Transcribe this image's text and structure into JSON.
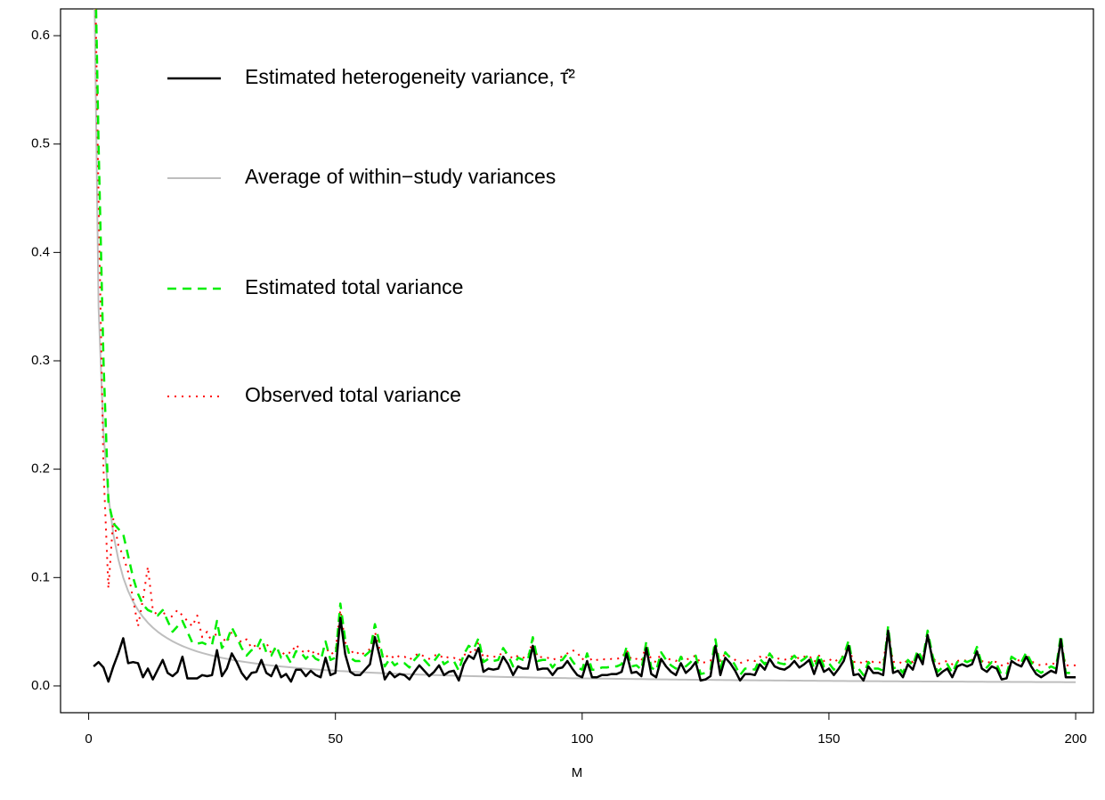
{
  "chart_data": {
    "type": "line",
    "xlabel": "M",
    "xlim": [
      -5.7,
      203.6
    ],
    "ylim": [
      -0.0247,
      0.6247
    ],
    "xticks": [
      0,
      50,
      100,
      150,
      200
    ],
    "yticks": [
      {
        "value": 0,
        "label": "0.0"
      },
      0.1,
      0.2,
      0.3,
      0.4,
      0.5,
      0.6
    ],
    "x": [
      1,
      2,
      3,
      4,
      5,
      6,
      7,
      8,
      9,
      10,
      11,
      12,
      13,
      14,
      15,
      16,
      17,
      18,
      19,
      20,
      21,
      22,
      23,
      24,
      25,
      26,
      27,
      28,
      29,
      30,
      31,
      32,
      33,
      34,
      35,
      36,
      37,
      38,
      39,
      40,
      41,
      42,
      43,
      44,
      45,
      46,
      47,
      48,
      49,
      50,
      51,
      52,
      53,
      54,
      55,
      56,
      57,
      58,
      59,
      60,
      61,
      62,
      63,
      64,
      65,
      66,
      67,
      68,
      69,
      70,
      71,
      72,
      73,
      74,
      75,
      76,
      77,
      78,
      79,
      80,
      81,
      82,
      83,
      84,
      85,
      86,
      87,
      88,
      89,
      90,
      91,
      92,
      93,
      94,
      95,
      96,
      97,
      98,
      99,
      100,
      101,
      102,
      103,
      104,
      105,
      106,
      107,
      108,
      109,
      110,
      111,
      112,
      113,
      114,
      115,
      116,
      117,
      118,
      119,
      120,
      121,
      122,
      123,
      124,
      125,
      126,
      127,
      128,
      129,
      130,
      131,
      132,
      133,
      134,
      135,
      136,
      137,
      138,
      139,
      140,
      141,
      142,
      143,
      144,
      145,
      146,
      147,
      148,
      149,
      150,
      151,
      152,
      153,
      154,
      155,
      156,
      157,
      158,
      159,
      160,
      161,
      162,
      163,
      164,
      165,
      166,
      167,
      168,
      169,
      170,
      171,
      172,
      173,
      174,
      175,
      176,
      177,
      178,
      179,
      180,
      181,
      182,
      183,
      184,
      185,
      186,
      187,
      188,
      189,
      190,
      191,
      192,
      193,
      194,
      195,
      196,
      197,
      198,
      199,
      200
    ],
    "series": [
      {
        "name": "Estimated heterogeneity variance, τ̂²",
        "color": "#000000",
        "linestyle": "solid",
        "values": [
          0.018,
          0.022,
          0.017,
          0.004,
          0.018,
          0.03,
          0.044,
          0.021,
          0.022,
          0.021,
          0.008,
          0.016,
          0.006,
          0.015,
          0.024,
          0.012,
          0.009,
          0.013,
          0.027,
          0.007,
          0.007,
          0.007,
          0.01,
          0.009,
          0.01,
          0.033,
          0.009,
          0.016,
          0.03,
          0.022,
          0.012,
          0.006,
          0.012,
          0.013,
          0.024,
          0.012,
          0.009,
          0.019,
          0.008,
          0.011,
          0.004,
          0.015,
          0.015,
          0.009,
          0.014,
          0.01,
          0.008,
          0.026,
          0.01,
          0.012,
          0.063,
          0.029,
          0.013,
          0.01,
          0.01,
          0.015,
          0.02,
          0.045,
          0.027,
          0.006,
          0.013,
          0.008,
          0.011,
          0.01,
          0.006,
          0.013,
          0.019,
          0.014,
          0.009,
          0.013,
          0.019,
          0.01,
          0.013,
          0.014,
          0.005,
          0.02,
          0.028,
          0.025,
          0.035,
          0.013,
          0.016,
          0.015,
          0.016,
          0.027,
          0.02,
          0.01,
          0.018,
          0.016,
          0.016,
          0.037,
          0.015,
          0.016,
          0.016,
          0.01,
          0.016,
          0.017,
          0.023,
          0.016,
          0.01,
          0.008,
          0.023,
          0.008,
          0.008,
          0.01,
          0.01,
          0.011,
          0.011,
          0.013,
          0.03,
          0.012,
          0.013,
          0.009,
          0.035,
          0.011,
          0.008,
          0.025,
          0.018,
          0.013,
          0.01,
          0.021,
          0.012,
          0.016,
          0.022,
          0.005,
          0.006,
          0.009,
          0.037,
          0.01,
          0.026,
          0.021,
          0.014,
          0.005,
          0.011,
          0.011,
          0.01,
          0.02,
          0.015,
          0.025,
          0.018,
          0.016,
          0.015,
          0.018,
          0.023,
          0.017,
          0.02,
          0.024,
          0.011,
          0.024,
          0.013,
          0.016,
          0.01,
          0.016,
          0.023,
          0.037,
          0.01,
          0.011,
          0.005,
          0.018,
          0.012,
          0.012,
          0.01,
          0.051,
          0.012,
          0.014,
          0.008,
          0.02,
          0.015,
          0.029,
          0.02,
          0.047,
          0.024,
          0.009,
          0.013,
          0.016,
          0.008,
          0.018,
          0.02,
          0.018,
          0.02,
          0.032,
          0.016,
          0.013,
          0.018,
          0.016,
          0.006,
          0.007,
          0.023,
          0.02,
          0.018,
          0.027,
          0.018,
          0.011,
          0.008,
          0.011,
          0.014,
          0.012,
          0.043,
          0.008,
          0.008,
          0.008
        ]
      },
      {
        "name": "Average of within−study variances",
        "color": "#bebebe",
        "linestyle": "solid",
        "values": [
          0.7,
          0.35,
          0.233,
          0.175,
          0.14,
          0.117,
          0.1,
          0.0875,
          0.0778,
          0.07,
          0.0636,
          0.0583,
          0.0538,
          0.05,
          0.0467,
          0.0438,
          0.0412,
          0.0389,
          0.0368,
          0.035,
          0.0333,
          0.0318,
          0.0304,
          0.0292,
          0.028,
          0.0269,
          0.0259,
          0.025,
          0.0241,
          0.0233,
          0.0226,
          0.0219,
          0.0212,
          0.0206,
          0.02,
          0.0194,
          0.0189,
          0.0184,
          0.0179,
          0.0175,
          0.0171,
          0.0167,
          0.0163,
          0.0159,
          0.0156,
          0.0152,
          0.0149,
          0.0146,
          0.0143,
          0.014,
          0.0137,
          0.0135,
          0.0132,
          0.013,
          0.0127,
          0.0125,
          0.0123,
          0.0121,
          0.0119,
          0.0117,
          0.0115,
          0.0113,
          0.0111,
          0.0109,
          0.0108,
          0.0106,
          0.0104,
          0.0103,
          0.0101,
          0.01,
          0.0099,
          0.0097,
          0.0096,
          0.0095,
          0.0093,
          0.0092,
          0.0091,
          0.009,
          0.0089,
          0.0088,
          0.0086,
          0.0085,
          0.0084,
          0.0083,
          0.0082,
          0.0081,
          0.008,
          0.008,
          0.0079,
          0.0078,
          0.0077,
          0.0076,
          0.0075,
          0.0074,
          0.0074,
          0.0073,
          0.0072,
          0.0071,
          0.0071,
          0.007,
          0.0069,
          0.0069,
          0.0068,
          0.0067,
          0.0067,
          0.0066,
          0.0065,
          0.0065,
          0.0064,
          0.0064,
          0.0063,
          0.0063,
          0.0062,
          0.0061,
          0.0061,
          0.006,
          0.006,
          0.0059,
          0.0059,
          0.0058,
          0.0058,
          0.0057,
          0.0057,
          0.0056,
          0.0056,
          0.0056,
          0.0055,
          0.0055,
          0.0054,
          0.0054,
          0.0053,
          0.0053,
          0.0053,
          0.0052,
          0.0052,
          0.0051,
          0.0051,
          0.0051,
          0.005,
          0.005,
          0.005,
          0.0049,
          0.0049,
          0.0049,
          0.0048,
          0.0048,
          0.0048,
          0.0047,
          0.0047,
          0.0047,
          0.0046,
          0.0046,
          0.0046,
          0.0045,
          0.0045,
          0.0045,
          0.0045,
          0.0044,
          0.0044,
          0.0044,
          0.0043,
          0.0043,
          0.0043,
          0.0043,
          0.0042,
          0.0042,
          0.0042,
          0.0042,
          0.0041,
          0.0041,
          0.0041,
          0.0041,
          0.004,
          0.004,
          0.004,
          0.004,
          0.004,
          0.0039,
          0.0039,
          0.0039,
          0.0039,
          0.0038,
          0.0038,
          0.0038,
          0.0038,
          0.0038,
          0.0037,
          0.0037,
          0.0037,
          0.0037,
          0.0037,
          0.0036,
          0.0036,
          0.0036,
          0.0036,
          0.0036,
          0.0036,
          0.0035,
          0.0035,
          0.0035
        ]
      },
      {
        "name": "Estimated total variance",
        "color": "#00ee00",
        "linestyle": "dashed",
        "values": [
          0.75,
          0.5,
          0.3,
          0.17,
          0.15,
          0.145,
          0.14,
          0.12,
          0.1,
          0.085,
          0.075,
          0.07,
          0.068,
          0.065,
          0.07,
          0.06,
          0.05,
          0.055,
          0.06,
          0.05,
          0.04,
          0.039,
          0.04,
          0.038,
          0.038,
          0.06,
          0.035,
          0.041,
          0.054,
          0.045,
          0.035,
          0.028,
          0.033,
          0.034,
          0.044,
          0.031,
          0.028,
          0.037,
          0.026,
          0.029,
          0.021,
          0.032,
          0.031,
          0.025,
          0.03,
          0.025,
          0.023,
          0.041,
          0.024,
          0.026,
          0.076,
          0.042,
          0.026,
          0.023,
          0.023,
          0.028,
          0.032,
          0.057,
          0.039,
          0.018,
          0.025,
          0.019,
          0.022,
          0.021,
          0.017,
          0.024,
          0.029,
          0.024,
          0.019,
          0.023,
          0.029,
          0.02,
          0.023,
          0.023,
          0.014,
          0.029,
          0.037,
          0.034,
          0.044,
          0.022,
          0.025,
          0.023,
          0.024,
          0.035,
          0.028,
          0.018,
          0.026,
          0.024,
          0.024,
          0.045,
          0.023,
          0.024,
          0.024,
          0.017,
          0.023,
          0.024,
          0.03,
          0.023,
          0.017,
          0.015,
          0.03,
          0.015,
          0.015,
          0.017,
          0.017,
          0.018,
          0.018,
          0.02,
          0.036,
          0.018,
          0.019,
          0.015,
          0.041,
          0.017,
          0.014,
          0.031,
          0.024,
          0.019,
          0.016,
          0.027,
          0.018,
          0.022,
          0.028,
          0.011,
          0.012,
          0.015,
          0.043,
          0.016,
          0.031,
          0.026,
          0.019,
          0.01,
          0.016,
          0.016,
          0.015,
          0.025,
          0.02,
          0.03,
          0.023,
          0.021,
          0.02,
          0.023,
          0.028,
          0.022,
          0.025,
          0.029,
          0.016,
          0.029,
          0.018,
          0.021,
          0.015,
          0.021,
          0.028,
          0.042,
          0.015,
          0.016,
          0.01,
          0.022,
          0.016,
          0.016,
          0.014,
          0.055,
          0.016,
          0.018,
          0.012,
          0.024,
          0.019,
          0.033,
          0.024,
          0.051,
          0.028,
          0.013,
          0.017,
          0.02,
          0.012,
          0.022,
          0.024,
          0.022,
          0.024,
          0.036,
          0.02,
          0.017,
          0.022,
          0.02,
          0.01,
          0.011,
          0.027,
          0.024,
          0.022,
          0.031,
          0.022,
          0.015,
          0.012,
          0.015,
          0.018,
          0.016,
          0.047,
          0.012,
          0.012,
          0.012
        ]
      },
      {
        "name": "Observed total variance",
        "color": "#ff0000",
        "linestyle": "dotted",
        "values": [
          0.75,
          0.45,
          0.2,
          0.09,
          0.155,
          0.13,
          0.12,
          0.105,
          0.08,
          0.055,
          0.08,
          0.11,
          0.07,
          0.065,
          0.07,
          0.06,
          0.065,
          0.07,
          0.065,
          0.06,
          0.055,
          0.065,
          0.045,
          0.05,
          0.04,
          0.05,
          0.045,
          0.04,
          0.05,
          0.045,
          0.04,
          0.043,
          0.035,
          0.038,
          0.033,
          0.04,
          0.03,
          0.035,
          0.028,
          0.032,
          0.03,
          0.038,
          0.033,
          0.03,
          0.034,
          0.028,
          0.031,
          0.036,
          0.029,
          0.032,
          0.07,
          0.04,
          0.03,
          0.033,
          0.028,
          0.031,
          0.034,
          0.05,
          0.033,
          0.026,
          0.029,
          0.025,
          0.028,
          0.027,
          0.024,
          0.028,
          0.03,
          0.027,
          0.025,
          0.028,
          0.029,
          0.025,
          0.027,
          0.026,
          0.023,
          0.028,
          0.032,
          0.03,
          0.04,
          0.026,
          0.028,
          0.027,
          0.027,
          0.032,
          0.029,
          0.025,
          0.028,
          0.026,
          0.027,
          0.042,
          0.026,
          0.027,
          0.026,
          0.024,
          0.026,
          0.027,
          0.03,
          0.033,
          0.031,
          0.024,
          0.03,
          0.023,
          0.024,
          0.025,
          0.024,
          0.025,
          0.025,
          0.026,
          0.033,
          0.024,
          0.025,
          0.023,
          0.038,
          0.024,
          0.022,
          0.03,
          0.026,
          0.024,
          0.023,
          0.027,
          0.024,
          0.026,
          0.028,
          0.021,
          0.022,
          0.023,
          0.036,
          0.023,
          0.03,
          0.027,
          0.024,
          0.021,
          0.023,
          0.024,
          0.023,
          0.027,
          0.025,
          0.029,
          0.026,
          0.025,
          0.024,
          0.026,
          0.028,
          0.025,
          0.027,
          0.028,
          0.022,
          0.028,
          0.023,
          0.025,
          0.022,
          0.025,
          0.028,
          0.036,
          0.022,
          0.023,
          0.02,
          0.024,
          0.022,
          0.022,
          0.021,
          0.052,
          0.022,
          0.023,
          0.02,
          0.024,
          0.022,
          0.03,
          0.025,
          0.045,
          0.027,
          0.02,
          0.022,
          0.023,
          0.02,
          0.023,
          0.024,
          0.023,
          0.024,
          0.032,
          0.023,
          0.021,
          0.023,
          0.022,
          0.019,
          0.019,
          0.026,
          0.024,
          0.023,
          0.029,
          0.023,
          0.02,
          0.019,
          0.02,
          0.021,
          0.02,
          0.04,
          0.019,
          0.019,
          0.019
        ]
      }
    ]
  }
}
